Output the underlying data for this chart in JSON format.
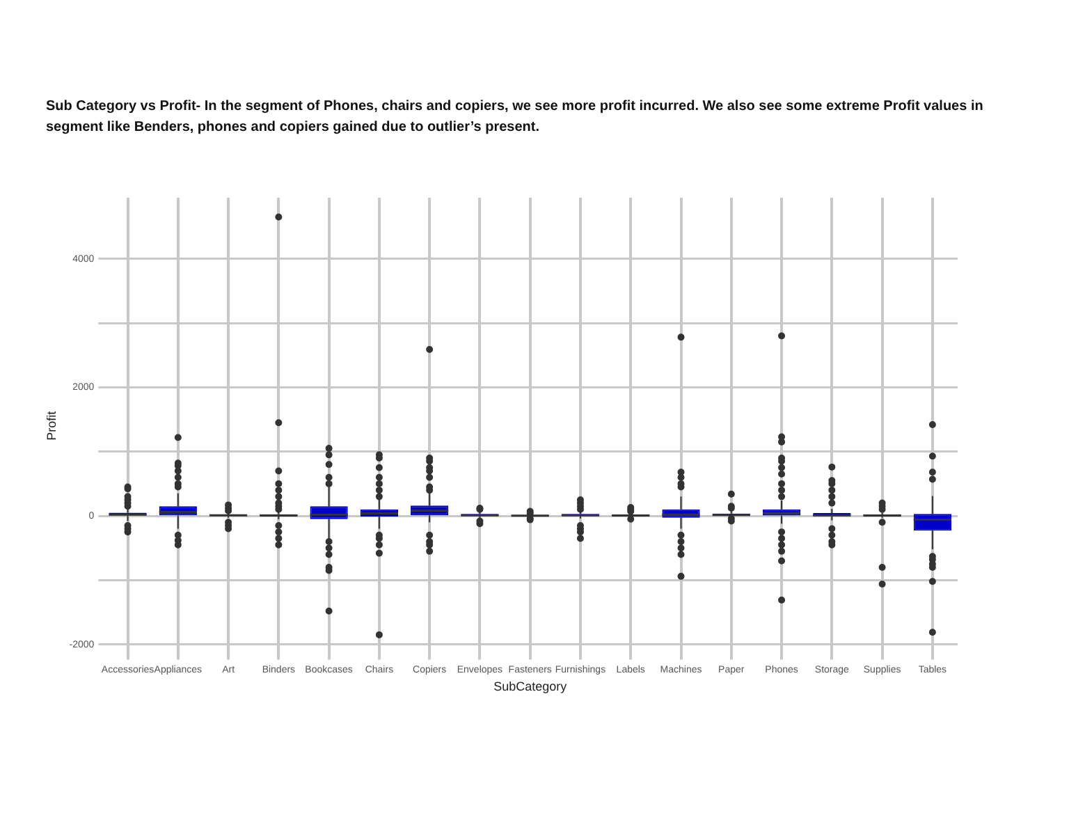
{
  "chart_data": {
    "type": "box",
    "title": "Sub Category vs Profit- In the segment of Phones, chairs and copiers, we see more profit incurred. We also see some extreme Profit values in segment like Benders, phones and copiers gained due to outlier’s present.",
    "xlabel": "SubCategory",
    "ylabel": "Profit",
    "categories": [
      "Accessories",
      "Appliances",
      "Art",
      "Binders",
      "Bookcases",
      "Chairs",
      "Copiers",
      "Envelopes",
      "Fasteners",
      "Furnishings",
      "Labels",
      "Machines",
      "Paper",
      "Phones",
      "Storage",
      "Supplies",
      "Tables"
    ],
    "series": [
      {
        "color": "#0000cc",
        "boxes": [
          {
            "low": -80,
            "q1": 5,
            "median": 20,
            "q3": 50,
            "high": 120,
            "outliers": [
              450,
              420,
              300,
              250,
              200,
              150,
              -150,
              -200,
              -250
            ]
          },
          {
            "low": -200,
            "q1": 10,
            "median": 60,
            "q3": 150,
            "high": 350,
            "outliers": [
              1220,
              820,
              780,
              700,
              600,
              500,
              450,
              -300,
              -380,
              -450
            ]
          },
          {
            "low": -30,
            "q1": 2,
            "median": 8,
            "q3": 20,
            "high": 50,
            "outliers": [
              170,
              120,
              80,
              -100,
              -150,
              -200
            ]
          },
          {
            "low": -50,
            "q1": -5,
            "median": 5,
            "q3": 25,
            "high": 70,
            "outliers": [
              4650,
              1450,
              700,
              500,
              400,
              300,
              200,
              150,
              100,
              -150,
              -250,
              -350,
              -450
            ]
          },
          {
            "low": -350,
            "q1": -50,
            "median": 20,
            "q3": 150,
            "high": 450,
            "outliers": [
              1050,
              950,
              800,
              600,
              500,
              -400,
              -500,
              -600,
              -800,
              -850,
              -1480
            ]
          },
          {
            "low": -200,
            "q1": -10,
            "median": 40,
            "q3": 100,
            "high": 250,
            "outliers": [
              950,
              900,
              750,
              600,
              500,
              400,
              300,
              -300,
              -350,
              -450,
              -580,
              -1850
            ]
          },
          {
            "low": -100,
            "q1": 10,
            "median": 80,
            "q3": 160,
            "high": 350,
            "outliers": [
              2590,
              900,
              850,
              750,
              700,
              600,
              450,
              400,
              -300,
              -400,
              -450,
              -550
            ]
          },
          {
            "low": -30,
            "q1": 3,
            "median": 10,
            "q3": 30,
            "high": 70,
            "outliers": [
              120,
              100,
              -80,
              -120
            ]
          },
          {
            "low": -10,
            "q1": 1,
            "median": 4,
            "q3": 10,
            "high": 25,
            "outliers": [
              70,
              40,
              -40,
              -60
            ]
          },
          {
            "low": -40,
            "q1": -2,
            "median": 10,
            "q3": 30,
            "high": 70,
            "outliers": [
              250,
              200,
              150,
              100,
              -150,
              -200,
              -250,
              -350
            ]
          },
          {
            "low": -10,
            "q1": 2,
            "median": 6,
            "q3": 15,
            "high": 35,
            "outliers": [
              130,
              100,
              70,
              -50
            ]
          },
          {
            "low": -200,
            "q1": -30,
            "median": 20,
            "q3": 100,
            "high": 300,
            "outliers": [
              2780,
              680,
              600,
              500,
              450,
              -300,
              -400,
              -500,
              -600,
              -940
            ]
          },
          {
            "low": -30,
            "q1": 5,
            "median": 15,
            "q3": 35,
            "high": 70,
            "outliers": [
              340,
              150,
              120,
              -40,
              -80
            ]
          },
          {
            "low": -120,
            "q1": 5,
            "median": 45,
            "q3": 100,
            "high": 240,
            "outliers": [
              2800,
              1230,
              1150,
              900,
              850,
              750,
              650,
              500,
              400,
              300,
              -250,
              -350,
              -450,
              -550,
              -700,
              -1310
            ]
          },
          {
            "low": -70,
            "q1": -5,
            "median": 10,
            "q3": 45,
            "high": 110,
            "outliers": [
              760,
              550,
              500,
              400,
              300,
              200,
              -200,
              -300,
              -400,
              -450
            ]
          },
          {
            "low": -30,
            "q1": -5,
            "median": 5,
            "q3": 20,
            "high": 50,
            "outliers": [
              200,
              150,
              100,
              -100,
              -800,
              -1060
            ]
          },
          {
            "low": -520,
            "q1": -230,
            "median": -60,
            "q3": 30,
            "high": 310,
            "outliers": [
              1420,
              930,
              680,
              570,
              -630,
              -680,
              -750,
              -800,
              -1020,
              -1810
            ]
          }
        ]
      }
    ],
    "ylim": [
      -2150,
      4950
    ],
    "yticks": [
      -2000,
      {
        "value": -1000,
        "label": null
      },
      0,
      {
        "value": 1000,
        "label": null
      },
      2000,
      {
        "value": 3000,
        "label": null
      },
      4000
    ],
    "grid": true,
    "legend": false,
    "marker": "circle"
  }
}
